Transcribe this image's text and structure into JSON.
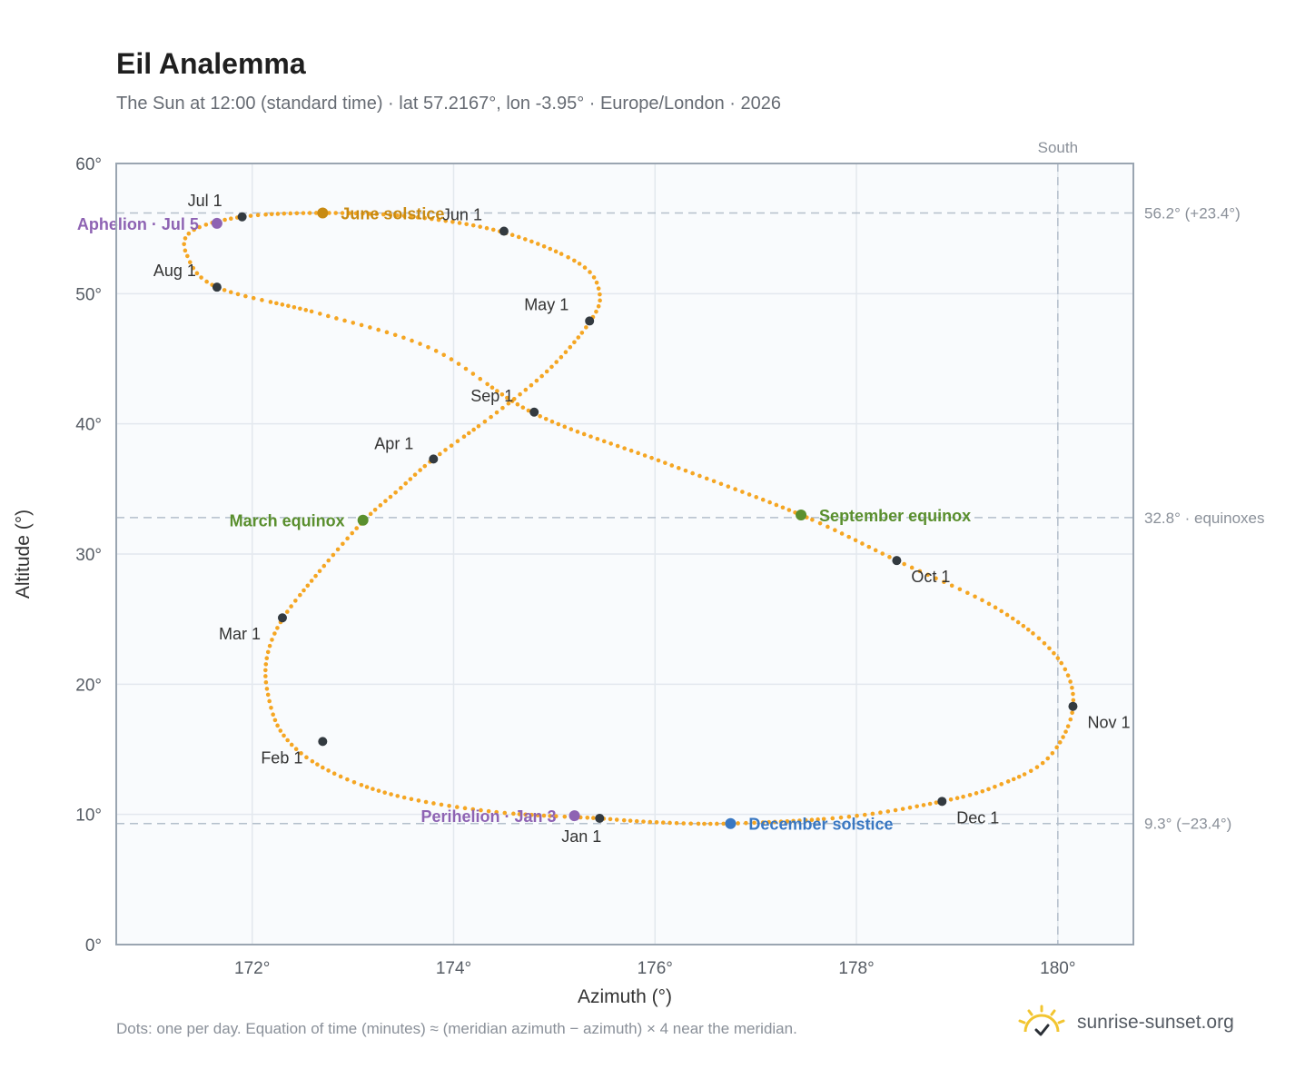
{
  "header": {
    "title": "Eil Analemma",
    "subtitle": "The Sun at 12:00 (standard time) · lat 57.2167°, lon -3.95° · Europe/London · 2026"
  },
  "footer": {
    "note": "Dots: one per day. Equation of time (minutes) ≈ (meridian azimuth − azimuth) × 4 near the meridian.",
    "brand": "sunrise-sunset.org"
  },
  "colors": {
    "curve": "#f5a623",
    "marker": "#333a40",
    "equinox": "#5a8f2e",
    "june_solstice": "#c88a12",
    "december_solstice": "#3a78c2",
    "apsis": "#8e63b3",
    "grid": "#e3e8ee",
    "plot_bg": "#f9fbfd",
    "frame": "#9aa5b1",
    "ref_line": "#b4bfcb"
  },
  "chart_data": {
    "type": "scatter",
    "xlabel": "Azimuth (°)",
    "ylabel": "Altitude (°)",
    "xlim": [
      170.65,
      180.75
    ],
    "ylim": [
      0,
      60
    ],
    "x_ticks": [
      172,
      174,
      176,
      178,
      180
    ],
    "x_tick_labels": [
      "172°",
      "174°",
      "176°",
      "178°",
      "180°"
    ],
    "y_ticks": [
      0,
      10,
      20,
      30,
      40,
      50,
      60
    ],
    "y_tick_labels": [
      "0°",
      "10°",
      "20°",
      "30°",
      "40°",
      "50°",
      "60°"
    ],
    "grid": true,
    "south_line": {
      "azimuth": 180,
      "label": "South"
    },
    "reference_lines": [
      {
        "altitude": 56.2,
        "label": "56.2° (+23.4°)"
      },
      {
        "altitude": 32.8,
        "label": "32.8° · equinoxes"
      },
      {
        "altitude": 9.3,
        "label": "9.3° (−23.4°)"
      }
    ],
    "path_points": [
      [
        175.45,
        9.7
      ],
      [
        174.4,
        10.2
      ],
      [
        173.4,
        11.5
      ],
      [
        172.7,
        13.6
      ],
      [
        172.3,
        16.2
      ],
      [
        172.15,
        19.5
      ],
      [
        172.15,
        22.2
      ],
      [
        172.3,
        25.0
      ],
      [
        172.65,
        28.5
      ],
      [
        173.1,
        32.5
      ],
      [
        173.45,
        34.9
      ],
      [
        173.8,
        37.3
      ],
      [
        174.4,
        40.7
      ],
      [
        174.95,
        44.2
      ],
      [
        175.35,
        47.8
      ],
      [
        175.45,
        50.0
      ],
      [
        175.25,
        52.3
      ],
      [
        174.5,
        54.7
      ],
      [
        173.6,
        55.9
      ],
      [
        172.7,
        56.2
      ],
      [
        171.9,
        55.9
      ],
      [
        171.4,
        54.8
      ],
      [
        171.35,
        53.0
      ],
      [
        171.65,
        50.5
      ],
      [
        172.7,
        48.4
      ],
      [
        173.8,
        45.7
      ],
      [
        174.8,
        40.8
      ],
      [
        176.1,
        37.0
      ],
      [
        177.45,
        33.0
      ],
      [
        178.4,
        29.5
      ],
      [
        179.4,
        25.8
      ],
      [
        180.0,
        22.0
      ],
      [
        180.15,
        18.2
      ],
      [
        179.9,
        14.3
      ],
      [
        179.4,
        12.2
      ],
      [
        178.85,
        11.0
      ],
      [
        177.9,
        9.8
      ],
      [
        176.75,
        9.3
      ],
      [
        176.0,
        9.4
      ],
      [
        175.45,
        9.7
      ]
    ],
    "month_markers": [
      {
        "label": "Jan 1",
        "az": 175.45,
        "alt": 9.7
      },
      {
        "label": "Feb 1",
        "az": 172.7,
        "alt": 15.6
      },
      {
        "label": "Mar 1",
        "az": 172.3,
        "alt": 25.1
      },
      {
        "label": "Apr 1",
        "az": 173.8,
        "alt": 37.3
      },
      {
        "label": "May 1",
        "az": 175.35,
        "alt": 47.9
      },
      {
        "label": "Jun 1",
        "az": 174.5,
        "alt": 54.8
      },
      {
        "label": "Jul 1",
        "az": 171.9,
        "alt": 55.9
      },
      {
        "label": "Aug 1",
        "az": 171.65,
        "alt": 50.5
      },
      {
        "label": "Sep 1",
        "az": 174.8,
        "alt": 40.9
      },
      {
        "label": "Oct 1",
        "az": 178.4,
        "alt": 29.5
      },
      {
        "label": "Nov 1",
        "az": 180.15,
        "alt": 18.3
      },
      {
        "label": "Dec 1",
        "az": 178.85,
        "alt": 11.0
      }
    ],
    "events": [
      {
        "label": "June solstice",
        "az": 172.7,
        "alt": 56.2,
        "color_key": "june_solstice"
      },
      {
        "label": "December solstice",
        "az": 176.75,
        "alt": 9.3,
        "color_key": "december_solstice"
      },
      {
        "label": "March equinox",
        "az": 173.1,
        "alt": 32.6,
        "color_key": "equinox"
      },
      {
        "label": "September equinox",
        "az": 177.45,
        "alt": 33.0,
        "color_key": "equinox"
      },
      {
        "label": "Aphelion · Jul 5",
        "az": 171.65,
        "alt": 55.4,
        "color_key": "apsis"
      },
      {
        "label": "Perihelion · Jan 3",
        "az": 175.2,
        "alt": 9.9,
        "color_key": "apsis"
      }
    ]
  }
}
